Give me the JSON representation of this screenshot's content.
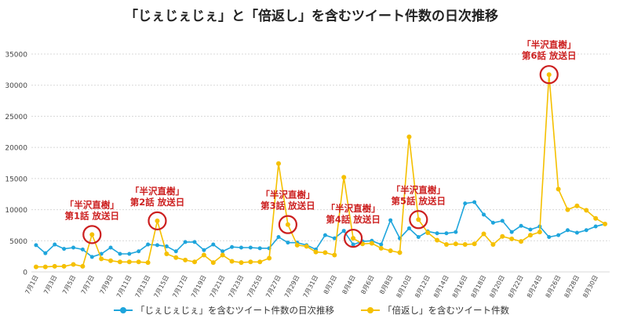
{
  "colors": {
    "series_0": "#1ea5dc",
    "series_1": "#f5c000",
    "annotation": "#cc1f1f",
    "grid": "#d8d8d8",
    "axis_text": "#444444"
  },
  "chart_data": {
    "type": "line",
    "title": "「じぇじぇじぇ」と「倍返し」を含むツイート件数の日次推移",
    "xlabel": "",
    "ylabel": "",
    "ylim": [
      0,
      35000
    ],
    "yticks": [
      0,
      5000,
      10000,
      15000,
      20000,
      25000,
      30000,
      35000
    ],
    "grid": true,
    "legend_position": "bottom",
    "categories": [
      "7月1日",
      "7月2日",
      "7月3日",
      "7月4日",
      "7月5日",
      "7月6日",
      "7月7日",
      "7月8日",
      "7月9日",
      "7月10日",
      "7月11日",
      "7月12日",
      "7月13日",
      "7月14日",
      "7月15日",
      "7月16日",
      "7月17日",
      "7月18日",
      "7月19日",
      "7月20日",
      "7月21日",
      "7月22日",
      "7月23日",
      "7月24日",
      "7月25日",
      "7月26日",
      "7月27日",
      "7月28日",
      "7月29日",
      "7月30日",
      "7月31日",
      "8月1日",
      "8月2日",
      "8月3日",
      "8月4日",
      "8月5日",
      "8月6日",
      "8月7日",
      "8月8日",
      "8月9日",
      "8月10日",
      "8月11日",
      "8月12日",
      "8月13日",
      "8月14日",
      "8月15日",
      "8月16日",
      "8月17日",
      "8月18日",
      "8月19日",
      "8月20日",
      "8月21日",
      "8月22日",
      "8月23日",
      "8月24日",
      "8月25日",
      "8月26日",
      "8月27日",
      "8月28日",
      "8月29日",
      "8月30日",
      "8月31日"
    ],
    "tick_labels": [
      "7月1日",
      "7月3日",
      "7月5日",
      "7月7日",
      "7月9日",
      "7月11日",
      "7月13日",
      "7月15日",
      "7月17日",
      "7月19日",
      "7月21日",
      "7月23日",
      "7月25日",
      "7月27日",
      "7月29日",
      "7月31日",
      "8月2日",
      "8月4日",
      "8月6日",
      "8月8日",
      "8月10日",
      "8月12日",
      "8月14日",
      "8月16日",
      "8月18日",
      "8月20日",
      "8月22日",
      "8月24日",
      "8月26日",
      "8月28日",
      "8月30日"
    ],
    "series": [
      {
        "name": "「じぇじぇじぇ」を含むツイート件数の日次推移",
        "values": [
          4300,
          3000,
          4400,
          3700,
          3900,
          3600,
          2400,
          2900,
          3900,
          2900,
          2900,
          3300,
          4400,
          4300,
          4100,
          3300,
          4800,
          4800,
          3500,
          4400,
          3300,
          4000,
          3900,
          3900,
          3800,
          3800,
          5600,
          4700,
          4700,
          4300,
          3600,
          5900,
          5400,
          6600,
          4400,
          4900,
          5000,
          4400,
          8300,
          5400,
          7000,
          5600,
          6500,
          6200,
          6200,
          6400,
          11000,
          11200,
          9200,
          7900,
          8200,
          6400,
          7400,
          6800,
          7300,
          5600,
          5900,
          6700,
          6300,
          6700,
          7300,
          7700
        ]
      },
      {
        "name": "「倍返し」を含むツイート件数",
        "values": [
          800,
          800,
          900,
          900,
          1200,
          900,
          6000,
          2100,
          1800,
          1600,
          1600,
          1600,
          1500,
          8200,
          2900,
          2300,
          1900,
          1600,
          2700,
          1500,
          2700,
          1700,
          1500,
          1600,
          1600,
          2200,
          17400,
          7600,
          4300,
          4100,
          3200,
          3100,
          2700,
          15200,
          5400,
          4500,
          4600,
          3800,
          3400,
          3100,
          21700,
          8400,
          6300,
          5100,
          4400,
          4500,
          4400,
          4500,
          6100,
          4400,
          5700,
          5300,
          4900,
          5900,
          6400,
          31700,
          13300,
          10000,
          10600,
          9900,
          8600,
          7700
        ]
      }
    ],
    "annotations": [
      {
        "lines": [
          "「半沢直樹」",
          "第1話 放送日"
        ],
        "category": "7月7日",
        "series_index": 1
      },
      {
        "lines": [
          "「半沢直樹」",
          "第2話 放送日"
        ],
        "category": "7月14日",
        "series_index": 1
      },
      {
        "lines": [
          "「半沢直樹」",
          "第3話 放送日"
        ],
        "category": "7月28日",
        "series_index": 1
      },
      {
        "lines": [
          "「半沢直樹」",
          "第4話 放送日"
        ],
        "category": "8月4日",
        "series_index": 1
      },
      {
        "lines": [
          "「半沢直樹」",
          "第5話 放送日"
        ],
        "category": "8月11日",
        "series_index": 1
      },
      {
        "lines": [
          "「半沢直樹」",
          "第6話 放送日"
        ],
        "category": "8月25日",
        "series_index": 1
      }
    ]
  }
}
